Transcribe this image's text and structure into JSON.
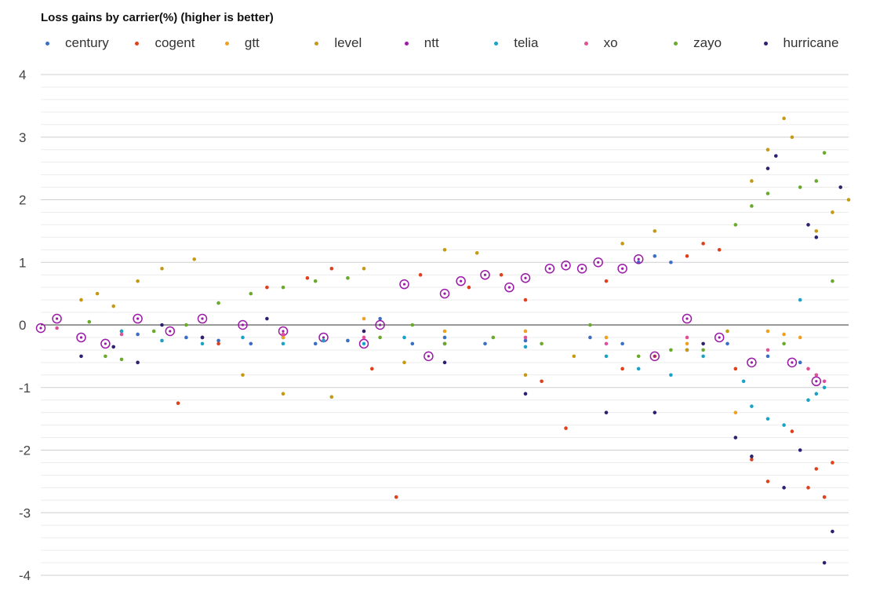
{
  "chart_data": {
    "type": "scatter",
    "title": "Loss gains by carrier(%) (higher is better)",
    "ylabel": "",
    "xlabel": "",
    "ylim": [
      -4,
      4
    ],
    "xlim": [
      0,
      1
    ],
    "y_ticks": [
      "4",
      "3",
      "2",
      "1",
      "0",
      "-1",
      "-2",
      "-3",
      "-4"
    ],
    "grid": true,
    "legend_position": "top",
    "highlight_series": "ntt",
    "series": [
      {
        "name": "century",
        "color": "#3b6ec4",
        "points": [
          [
            0.12,
            -0.15
          ],
          [
            0.18,
            -0.2
          ],
          [
            0.22,
            -0.25
          ],
          [
            0.26,
            -0.3
          ],
          [
            0.3,
            -0.2
          ],
          [
            0.34,
            -0.3
          ],
          [
            0.38,
            -0.25
          ],
          [
            0.42,
            0.1
          ],
          [
            0.46,
            -0.3
          ],
          [
            0.5,
            -0.2
          ],
          [
            0.55,
            -0.3
          ],
          [
            0.6,
            -0.25
          ],
          [
            0.68,
            -0.2
          ],
          [
            0.72,
            -0.3
          ],
          [
            0.74,
            1.0
          ],
          [
            0.76,
            1.1
          ],
          [
            0.78,
            1.0
          ],
          [
            0.8,
            -0.4
          ],
          [
            0.85,
            -0.3
          ],
          [
            0.9,
            -0.5
          ],
          [
            0.94,
            -0.6
          ]
        ]
      },
      {
        "name": "cogent",
        "color": "#e0401c",
        "points": [
          [
            0.17,
            -1.25
          ],
          [
            0.22,
            -0.3
          ],
          [
            0.28,
            0.6
          ],
          [
            0.33,
            0.75
          ],
          [
            0.36,
            0.9
          ],
          [
            0.41,
            -0.7
          ],
          [
            0.44,
            -2.75
          ],
          [
            0.47,
            0.8
          ],
          [
            0.53,
            0.6
          ],
          [
            0.57,
            0.8
          ],
          [
            0.6,
            0.4
          ],
          [
            0.62,
            -0.9
          ],
          [
            0.65,
            -1.65
          ],
          [
            0.7,
            0.7
          ],
          [
            0.72,
            -0.7
          ],
          [
            0.76,
            -0.5
          ],
          [
            0.8,
            1.1
          ],
          [
            0.82,
            1.3
          ],
          [
            0.84,
            1.2
          ],
          [
            0.86,
            -0.7
          ],
          [
            0.88,
            -2.15
          ],
          [
            0.9,
            -2.5
          ],
          [
            0.93,
            -1.7
          ],
          [
            0.95,
            -2.6
          ],
          [
            0.96,
            -2.3
          ],
          [
            0.97,
            -2.75
          ],
          [
            0.98,
            -2.2
          ]
        ]
      },
      {
        "name": "gtt",
        "color": "#f0a020",
        "points": [
          [
            0.1,
            -0.1
          ],
          [
            0.2,
            -0.2
          ],
          [
            0.3,
            -0.2
          ],
          [
            0.4,
            0.1
          ],
          [
            0.5,
            -0.1
          ],
          [
            0.6,
            -0.1
          ],
          [
            0.7,
            -0.2
          ],
          [
            0.8,
            -0.3
          ],
          [
            0.86,
            -1.4
          ],
          [
            0.9,
            -0.1
          ],
          [
            0.92,
            -0.15
          ],
          [
            0.94,
            -0.2
          ]
        ]
      },
      {
        "name": "level",
        "color": "#c49a14",
        "points": [
          [
            0.05,
            0.4
          ],
          [
            0.07,
            0.5
          ],
          [
            0.09,
            0.3
          ],
          [
            0.12,
            0.7
          ],
          [
            0.15,
            0.9
          ],
          [
            0.19,
            1.05
          ],
          [
            0.25,
            -0.8
          ],
          [
            0.3,
            -1.1
          ],
          [
            0.36,
            -1.15
          ],
          [
            0.4,
            0.9
          ],
          [
            0.45,
            -0.6
          ],
          [
            0.5,
            1.2
          ],
          [
            0.54,
            1.15
          ],
          [
            0.6,
            -0.8
          ],
          [
            0.66,
            -0.5
          ],
          [
            0.72,
            1.3
          ],
          [
            0.76,
            1.5
          ],
          [
            0.8,
            -0.4
          ],
          [
            0.85,
            -0.1
          ],
          [
            0.88,
            2.3
          ],
          [
            0.9,
            2.8
          ],
          [
            0.92,
            3.3
          ],
          [
            0.93,
            3.0
          ],
          [
            0.96,
            1.5
          ],
          [
            0.98,
            1.8
          ],
          [
            1.0,
            2.0
          ]
        ]
      },
      {
        "name": "ntt",
        "color": "#9b1aa8",
        "points": [
          [
            0.0,
            -0.05
          ],
          [
            0.02,
            0.1
          ],
          [
            0.05,
            -0.2
          ],
          [
            0.08,
            -0.3
          ],
          [
            0.12,
            0.1
          ],
          [
            0.16,
            -0.1
          ],
          [
            0.2,
            0.1
          ],
          [
            0.25,
            0.0
          ],
          [
            0.3,
            -0.1
          ],
          [
            0.35,
            -0.2
          ],
          [
            0.4,
            -0.3
          ],
          [
            0.42,
            0.0
          ],
          [
            0.45,
            0.65
          ],
          [
            0.48,
            -0.5
          ],
          [
            0.5,
            0.5
          ],
          [
            0.52,
            0.7
          ],
          [
            0.55,
            0.8
          ],
          [
            0.58,
            0.6
          ],
          [
            0.6,
            0.75
          ],
          [
            0.63,
            0.9
          ],
          [
            0.65,
            0.95
          ],
          [
            0.67,
            0.9
          ],
          [
            0.69,
            1.0
          ],
          [
            0.72,
            0.9
          ],
          [
            0.74,
            1.05
          ],
          [
            0.76,
            -0.5
          ],
          [
            0.8,
            0.1
          ],
          [
            0.84,
            -0.2
          ],
          [
            0.88,
            -0.6
          ],
          [
            0.93,
            -0.6
          ],
          [
            0.96,
            -0.9
          ]
        ]
      },
      {
        "name": "telia",
        "color": "#1aa3c4",
        "points": [
          [
            0.1,
            -0.1
          ],
          [
            0.15,
            -0.25
          ],
          [
            0.2,
            -0.3
          ],
          [
            0.25,
            -0.2
          ],
          [
            0.3,
            -0.3
          ],
          [
            0.35,
            -0.25
          ],
          [
            0.4,
            -0.3
          ],
          [
            0.45,
            -0.2
          ],
          [
            0.5,
            -0.3
          ],
          [
            0.6,
            -0.35
          ],
          [
            0.7,
            -0.5
          ],
          [
            0.74,
            -0.7
          ],
          [
            0.78,
            -0.8
          ],
          [
            0.82,
            -0.5
          ],
          [
            0.87,
            -0.9
          ],
          [
            0.88,
            -1.3
          ],
          [
            0.9,
            -1.5
          ],
          [
            0.92,
            -1.6
          ],
          [
            0.94,
            0.4
          ],
          [
            0.95,
            -1.2
          ],
          [
            0.96,
            -1.1
          ],
          [
            0.97,
            -1.0
          ]
        ]
      },
      {
        "name": "xo",
        "color": "#e0509a",
        "points": [
          [
            0.02,
            -0.05
          ],
          [
            0.1,
            -0.15
          ],
          [
            0.2,
            -0.2
          ],
          [
            0.3,
            -0.15
          ],
          [
            0.4,
            -0.2
          ],
          [
            0.5,
            -0.3
          ],
          [
            0.6,
            -0.2
          ],
          [
            0.7,
            -0.3
          ],
          [
            0.8,
            -0.2
          ],
          [
            0.9,
            -0.4
          ],
          [
            0.95,
            -0.7
          ],
          [
            0.96,
            -0.8
          ],
          [
            0.97,
            -0.9
          ]
        ]
      },
      {
        "name": "zayo",
        "color": "#6aaa2a",
        "points": [
          [
            0.06,
            0.05
          ],
          [
            0.08,
            -0.5
          ],
          [
            0.1,
            -0.55
          ],
          [
            0.14,
            -0.1
          ],
          [
            0.18,
            0.0
          ],
          [
            0.22,
            0.35
          ],
          [
            0.26,
            0.5
          ],
          [
            0.3,
            0.6
          ],
          [
            0.34,
            0.7
          ],
          [
            0.38,
            0.75
          ],
          [
            0.42,
            -0.2
          ],
          [
            0.46,
            0.0
          ],
          [
            0.5,
            -0.3
          ],
          [
            0.56,
            -0.2
          ],
          [
            0.62,
            -0.3
          ],
          [
            0.68,
            0.0
          ],
          [
            0.74,
            -0.5
          ],
          [
            0.78,
            -0.4
          ],
          [
            0.82,
            -0.4
          ],
          [
            0.86,
            1.6
          ],
          [
            0.88,
            1.9
          ],
          [
            0.9,
            2.1
          ],
          [
            0.92,
            -0.3
          ],
          [
            0.94,
            2.2
          ],
          [
            0.96,
            2.3
          ],
          [
            0.97,
            2.75
          ],
          [
            0.98,
            0.7
          ]
        ]
      },
      {
        "name": "hurricane",
        "color": "#2a2270",
        "points": [
          [
            0.05,
            -0.5
          ],
          [
            0.09,
            -0.35
          ],
          [
            0.12,
            -0.6
          ],
          [
            0.15,
            0.0
          ],
          [
            0.2,
            -0.2
          ],
          [
            0.28,
            0.1
          ],
          [
            0.4,
            -0.1
          ],
          [
            0.5,
            -0.6
          ],
          [
            0.6,
            -1.1
          ],
          [
            0.7,
            -1.4
          ],
          [
            0.76,
            -1.4
          ],
          [
            0.82,
            -0.3
          ],
          [
            0.86,
            -1.8
          ],
          [
            0.88,
            -2.1
          ],
          [
            0.9,
            2.5
          ],
          [
            0.91,
            2.7
          ],
          [
            0.92,
            -2.6
          ],
          [
            0.94,
            -2.0
          ],
          [
            0.95,
            1.6
          ],
          [
            0.96,
            1.4
          ],
          [
            0.97,
            -3.8
          ],
          [
            0.98,
            -3.3
          ],
          [
            0.99,
            2.2
          ]
        ]
      }
    ]
  }
}
